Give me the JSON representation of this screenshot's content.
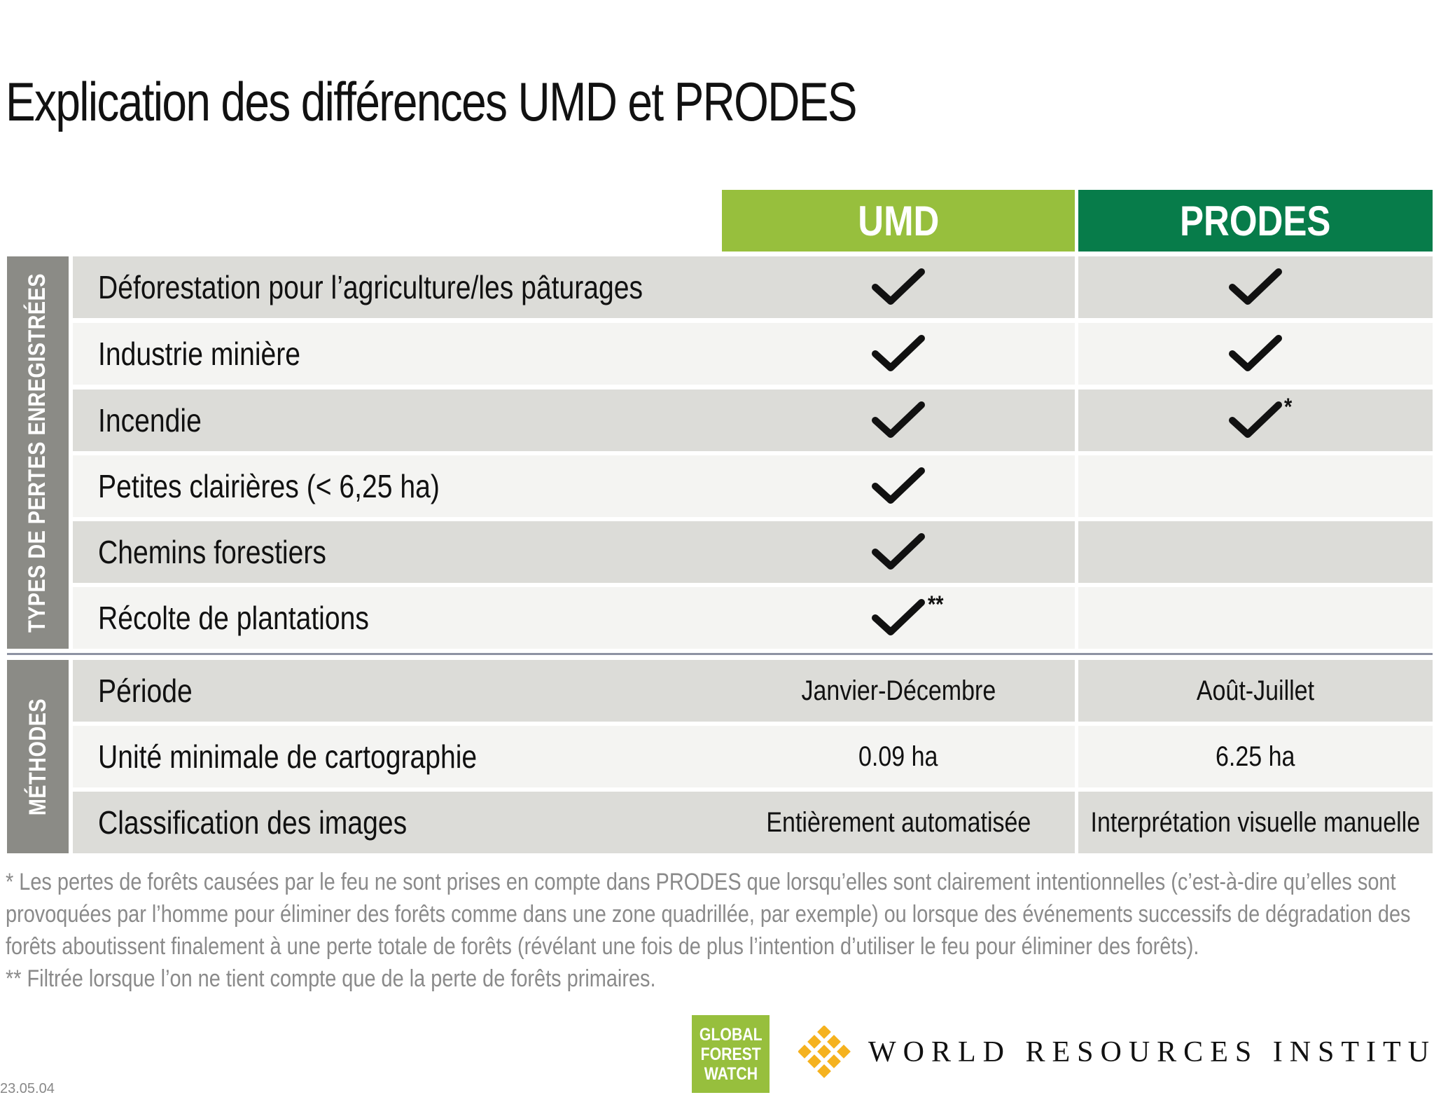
{
  "title": "Explication des différences UMD et PRODES",
  "columns": {
    "umd": "UMD",
    "prodes": "PRODES"
  },
  "sections": {
    "types_label": "TYPES DE PERTES ENREGISTRÉES",
    "methods_label": "MÉTHODES"
  },
  "loss_types": [
    {
      "label": "Déforestation pour l’agriculture/les pâturages",
      "umd": "check",
      "prodes": "check"
    },
    {
      "label": "Industrie minière",
      "umd": "check",
      "prodes": "check"
    },
    {
      "label": "Incendie",
      "umd": "check",
      "prodes": "check",
      "prodes_note": "*"
    },
    {
      "label": "Petites clairières (< 6,25 ha)",
      "umd": "check",
      "prodes": ""
    },
    {
      "label": "Chemins forestiers",
      "umd": "check",
      "prodes": ""
    },
    {
      "label": "Récolte de plantations",
      "umd": "check",
      "umd_note": "**",
      "prodes": ""
    }
  ],
  "methods": [
    {
      "label": "Période",
      "umd": "Janvier-Décembre",
      "prodes": "Août-Juillet"
    },
    {
      "label": "Unité minimale de cartographie",
      "umd": "0.09 ha",
      "prodes": "6.25 ha"
    },
    {
      "label": "Classification des images",
      "umd": "Entièrement automatisée",
      "prodes": "Interprétation visuelle manuelle"
    }
  ],
  "footnotes": {
    "line1": "* Les pertes de forêts causées par le feu ne sont prises en compte dans PRODES que lorsqu’elles sont clairement intentionnelles (c’est-à-dire qu’elles sont",
    "line2": "provoquées par l’homme pour éliminer des forêts comme dans une zone quadrillée, par exemple) ou lorsque des événements successifs de dégradation des",
    "line3": "forêts aboutissent finalement à une perte totale de forêts (révélant une fois de plus l’intention d’utiliser le feu pour éliminer des forêts).",
    "line4": "** Filtrée lorsque l’on ne tient compte que de la perte de forêts primaires."
  },
  "logos": {
    "gfw_line1": "GLOBAL",
    "gfw_line2": "FOREST",
    "gfw_line3": "WATCH",
    "wri": "WORLD RESOURCES INSTITUTE"
  },
  "date": "23.05.04",
  "colors": {
    "umd": "#97bf3d",
    "prodes": "#077c4a",
    "side": "#8b8b86",
    "row_shade": "#dcdcd8",
    "row_light": "#f4f4f2"
  },
  "icons": {
    "check": "check-icon",
    "wri_logo": "wri-logo-icon"
  }
}
